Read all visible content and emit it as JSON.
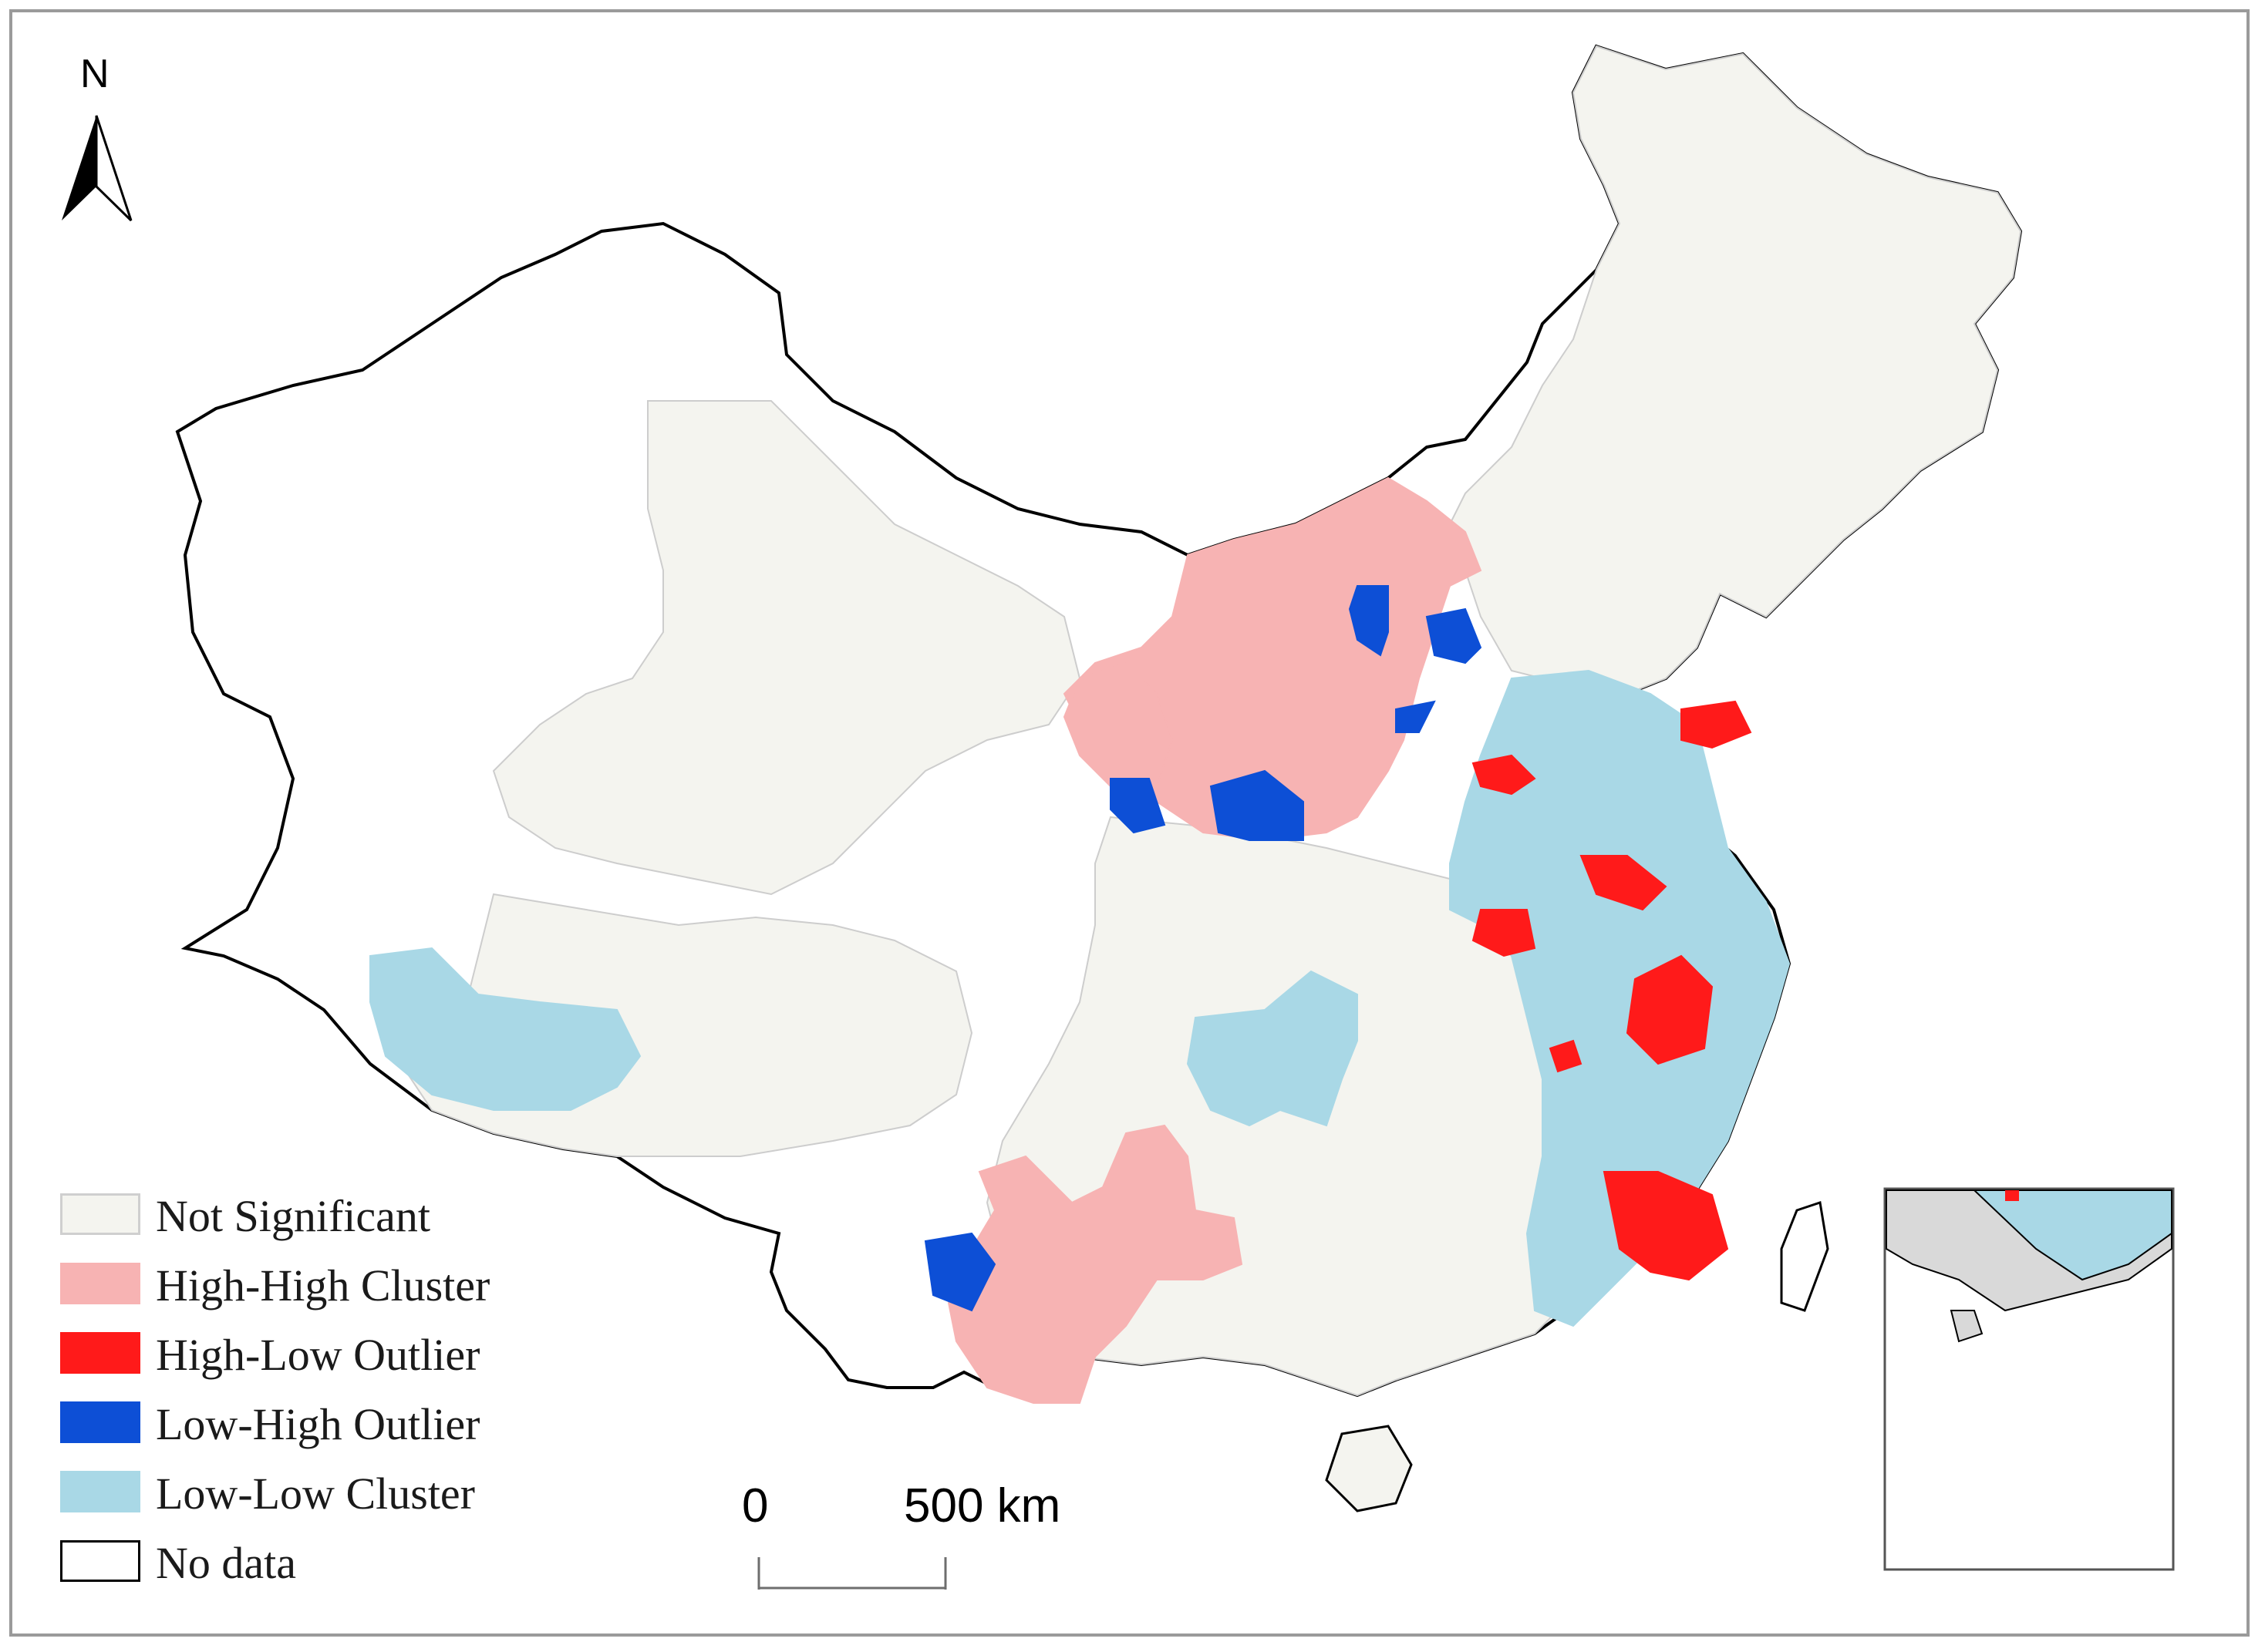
{
  "north_arrow": {
    "label": "N"
  },
  "legend": {
    "items": [
      {
        "label": "Not Significant",
        "color": "#f4f4ef",
        "border": "#cfcfcf"
      },
      {
        "label": "High-High Cluster",
        "color": "#f7b3b3",
        "border": "#f7b3b3"
      },
      {
        "label": "High-Low Outlier",
        "color": "#ff1a1a",
        "border": "#ff1a1a"
      },
      {
        "label": "Low-High Outlier",
        "color": "#0d4fd6",
        "border": "#0d4fd6"
      },
      {
        "label": "Low-Low Cluster",
        "color": "#a9d8e6",
        "border": "#a9d8e6"
      },
      {
        "label": "No data",
        "color": "#ffffff",
        "border": "#000000"
      }
    ]
  },
  "scale_bar": {
    "start_label": "0",
    "end_label": "500 km"
  }
}
